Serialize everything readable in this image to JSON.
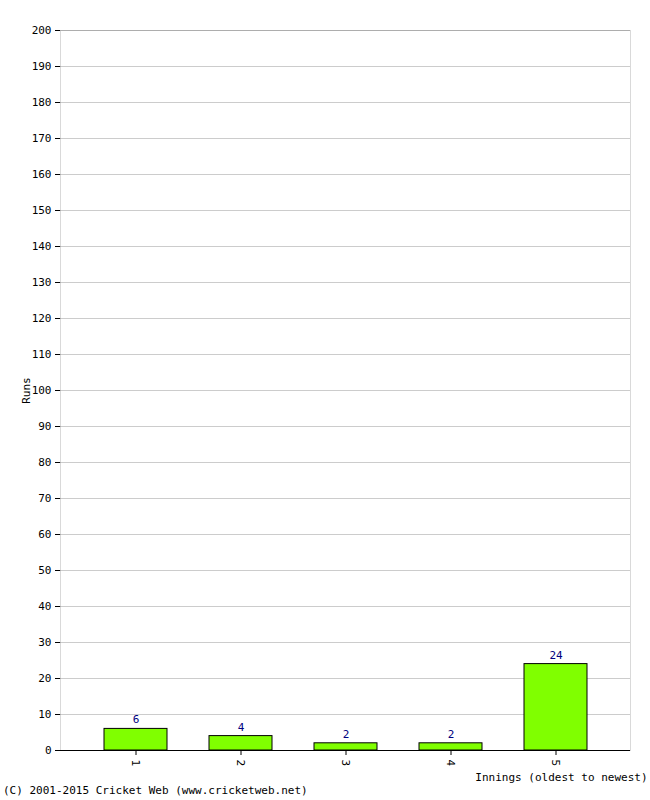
{
  "chart_data": {
    "type": "bar",
    "categories": [
      "1",
      "2",
      "3",
      "4",
      "5"
    ],
    "values": [
      6,
      4,
      2,
      2,
      24
    ],
    "color": "#80ff00",
    "x_label": "Innings (oldest to newest)",
    "y_label": "Runs",
    "caption": "(C) 2001-2015 Cricket Web (www.cricketweb.net)",
    "ylim": [
      0,
      200
    ],
    "yticks": [
      0,
      10,
      20,
      30,
      40,
      50,
      60,
      70,
      80,
      90,
      100,
      110,
      120,
      130,
      140,
      150,
      160,
      170,
      180,
      190,
      200
    ],
    "grid": true,
    "data_labels": true
  }
}
